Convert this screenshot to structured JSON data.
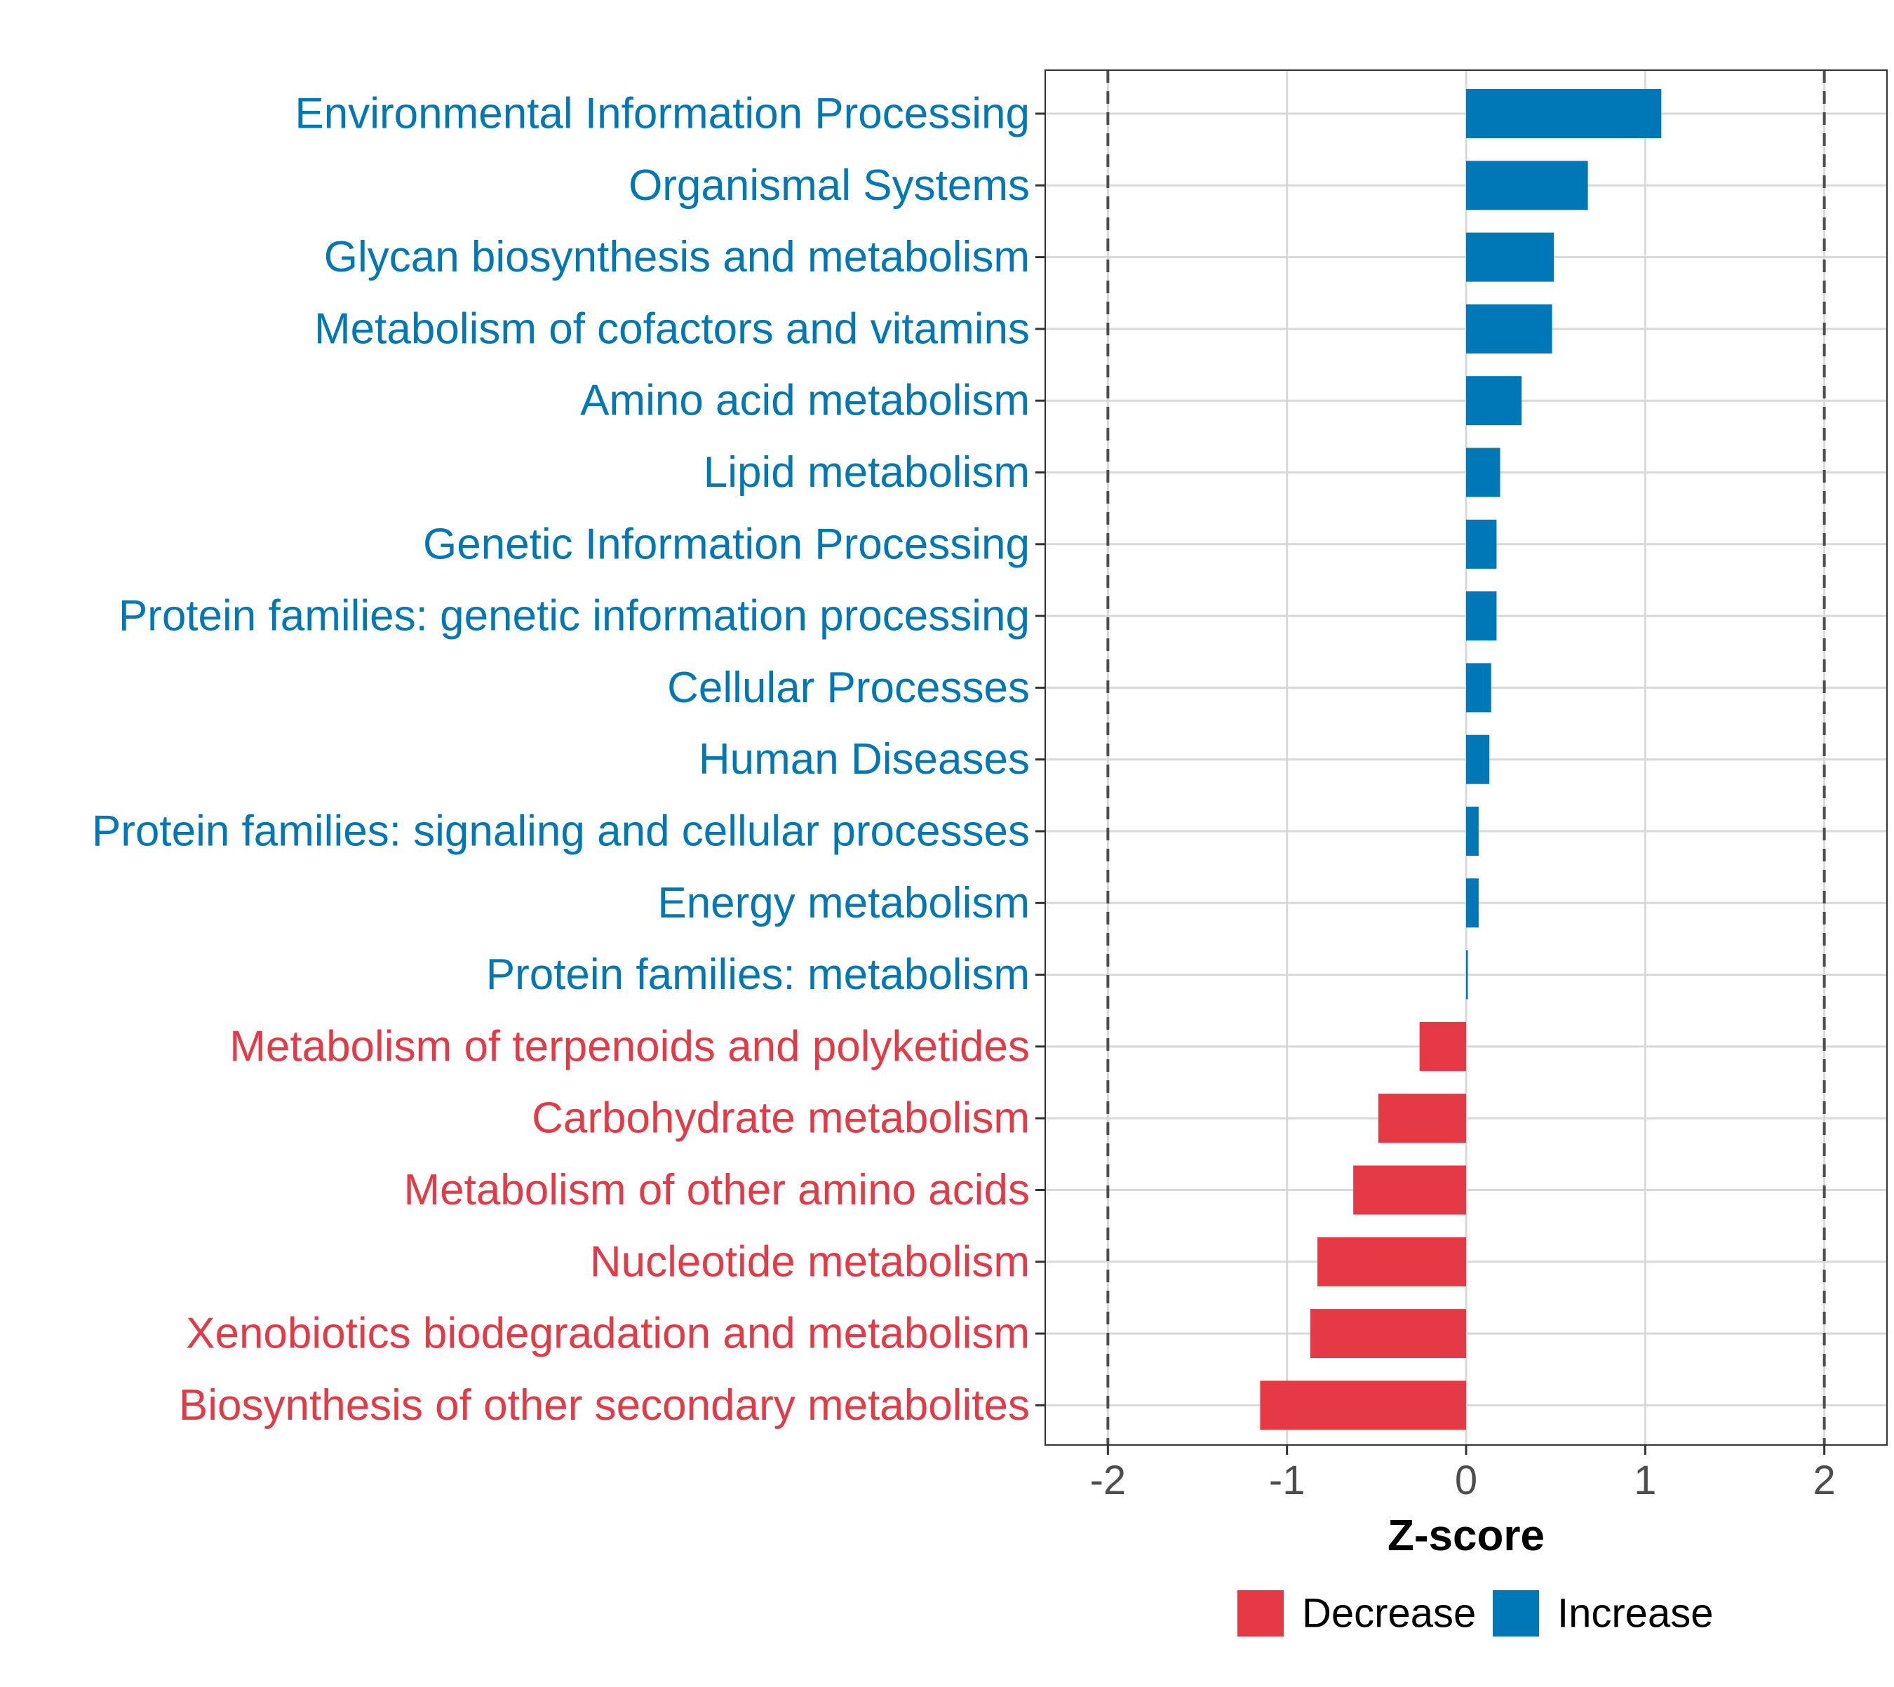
{
  "chart_data": {
    "type": "bar",
    "orientation": "horizontal",
    "title": "",
    "xlabel": "Z-score",
    "ylabel": "",
    "xlim": [
      -2.35,
      2.35
    ],
    "xticks": [
      -2,
      -1,
      0,
      1,
      2
    ],
    "xtick_labels": [
      "-2",
      "-1",
      "0",
      "1",
      "2"
    ],
    "reference_lines": [
      -2,
      2
    ],
    "grid": true,
    "legend_position": "bottom",
    "legend": [
      {
        "label": "Decrease",
        "color": "#e63946"
      },
      {
        "label": "Increase",
        "color": "#0077b6"
      }
    ],
    "colors": {
      "Increase": "#0077b6",
      "Decrease": "#e63946"
    },
    "categories": [
      "Environmental Information Processing",
      "Organismal Systems",
      "Glycan biosynthesis and metabolism",
      "Metabolism of cofactors and vitamins",
      "Amino acid metabolism",
      "Lipid metabolism",
      "Genetic Information Processing",
      "Protein families: genetic information processing",
      "Cellular Processes",
      "Human Diseases",
      "Protein families: signaling and cellular processes",
      "Energy metabolism",
      "Protein families: metabolism",
      "Metabolism of terpenoids and polyketides",
      "Carbohydrate metabolism",
      "Metabolism of other amino acids",
      "Nucleotide metabolism",
      "Xenobiotics biodegradation and metabolism",
      "Biosynthesis of other secondary metabolites"
    ],
    "values": [
      1.09,
      0.68,
      0.49,
      0.48,
      0.31,
      0.19,
      0.17,
      0.17,
      0.14,
      0.13,
      0.07,
      0.07,
      0.01,
      -0.26,
      -0.49,
      -0.63,
      -0.83,
      -0.87,
      -1.15
    ],
    "groups": [
      "Increase",
      "Increase",
      "Increase",
      "Increase",
      "Increase",
      "Increase",
      "Increase",
      "Increase",
      "Increase",
      "Increase",
      "Increase",
      "Increase",
      "Increase",
      "Decrease",
      "Decrease",
      "Decrease",
      "Decrease",
      "Decrease",
      "Decrease"
    ]
  }
}
